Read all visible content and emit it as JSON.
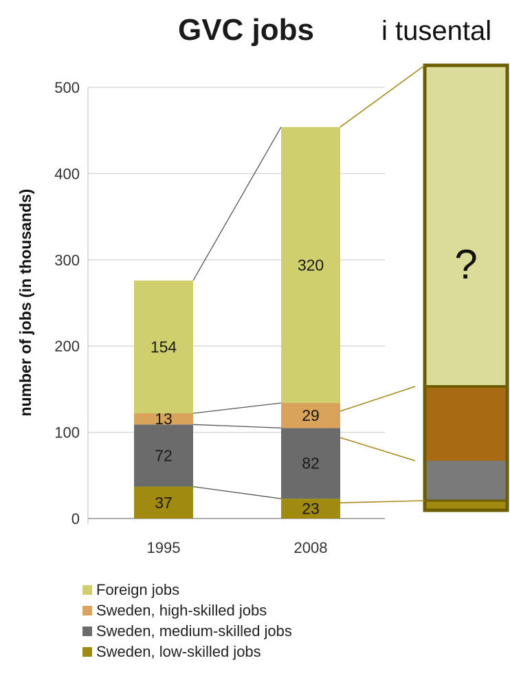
{
  "chart_data": {
    "type": "bar",
    "stacked": true,
    "title": "GVC jobs",
    "annotation": "i tusental",
    "ylabel": "number of jobs (in thousands)",
    "xlabel": "",
    "ylim": [
      0,
      500
    ],
    "yticks": [
      0,
      100,
      200,
      300,
      400,
      500
    ],
    "categories": [
      "1995",
      "2008"
    ],
    "series": [
      {
        "name": "Sweden, low-skilled jobs",
        "values": [
          37,
          23
        ],
        "color": "#a08a10"
      },
      {
        "name": "Sweden, medium-skilled jobs",
        "values": [
          72,
          82
        ],
        "color": "#6b6b6b"
      },
      {
        "name": "Sweden, high-skilled jobs",
        "values": [
          13,
          29
        ],
        "color": "#d9a35c"
      },
      {
        "name": "Foreign jobs",
        "values": [
          154,
          320
        ],
        "color": "#cfcf6e"
      }
    ],
    "legend_position": "bottom-left",
    "grid": "horizontal",
    "projection": {
      "label": "?",
      "note": "projection bar with unknown values",
      "colors": {
        "foreign": "#dcdc9a",
        "high": "#a86a12",
        "medium": "#7a7a7a",
        "low": "#a08a10",
        "border": "#6e5c00"
      }
    }
  }
}
